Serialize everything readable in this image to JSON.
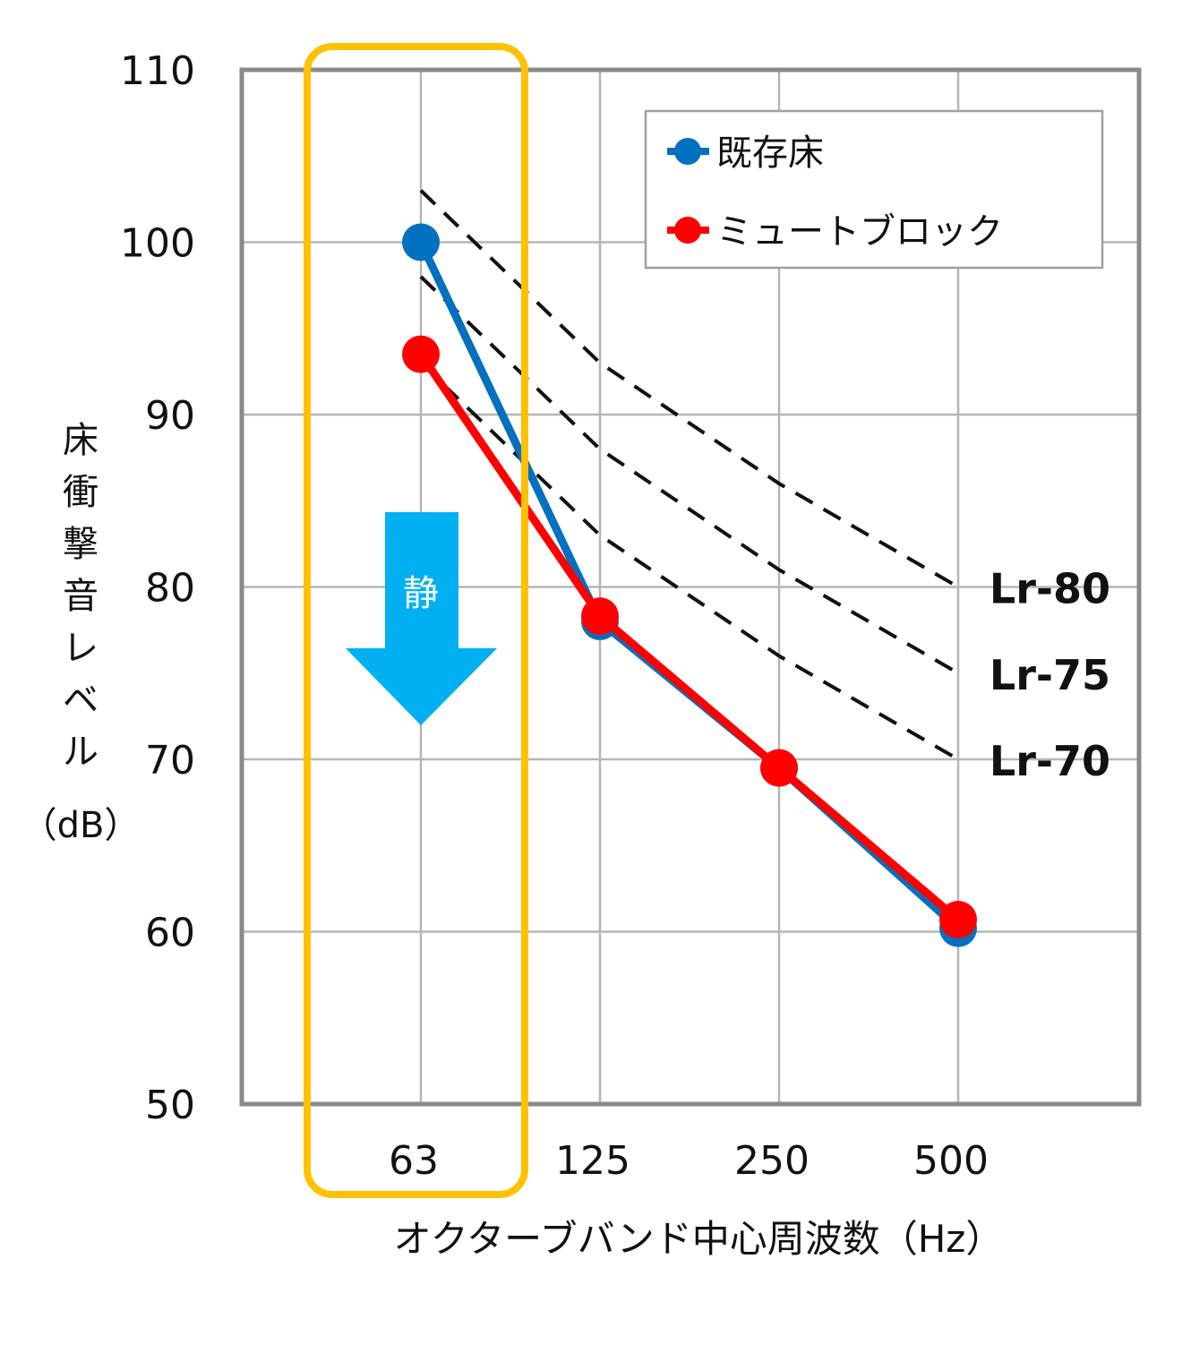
{
  "chart_data": {
    "type": "line",
    "categories": [
      "63",
      "125",
      "250",
      "500"
    ],
    "ylabel": "床衝撃音レベル（dB）",
    "ylabel_chars": [
      "床",
      "衝",
      "撃",
      "音",
      "レ",
      "ベ",
      "ル"
    ],
    "ylabel_unit": "（dB）",
    "xlabel": "オクターブバンド中心周波数（Hz）",
    "ylim": [
      50,
      110
    ],
    "yticks": [
      50,
      60,
      70,
      80,
      90,
      100,
      110
    ],
    "grid": true,
    "legend_position": "top-right",
    "series": [
      {
        "name": "既存床",
        "color": "#0070C0",
        "values": [
          100,
          78,
          69.5,
          60.2
        ]
      },
      {
        "name": "ミュートブロック",
        "color": "#FF0000",
        "values": [
          93.5,
          78.3,
          69.5,
          60.7
        ]
      }
    ],
    "reference_lines": [
      {
        "name": "Lr-80",
        "values": [
          103,
          93,
          86,
          80
        ]
      },
      {
        "name": "Lr-75",
        "values": [
          98,
          88,
          81,
          75
        ]
      },
      {
        "name": "Lr-70",
        "values": [
          93,
          83,
          76,
          70
        ]
      }
    ],
    "highlight_category": "63",
    "highlight_color": "#FFC000",
    "arrow_label": "静",
    "arrow_color": "#00B0F0"
  }
}
